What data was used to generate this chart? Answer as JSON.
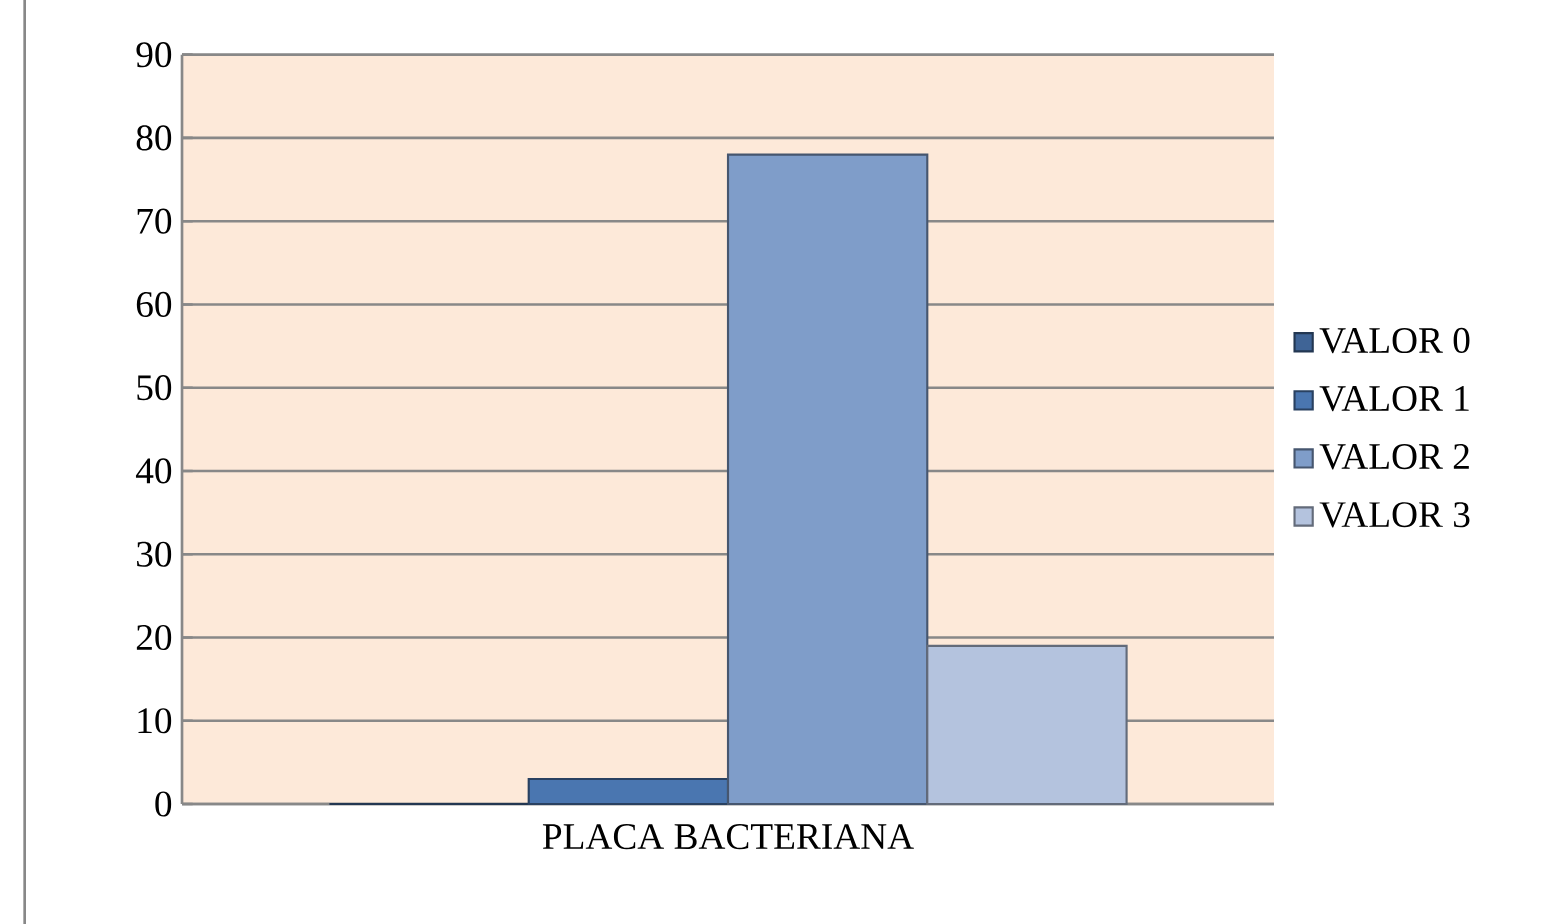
{
  "chart_data": {
    "type": "bar",
    "categories": [
      "PLACA BACTERIANA"
    ],
    "series": [
      {
        "name": "VALOR 0",
        "color": "#3f6496",
        "values": [
          0
        ]
      },
      {
        "name": "VALOR 1",
        "color": "#4a76b0",
        "values": [
          3
        ]
      },
      {
        "name": "VALOR 2",
        "color": "#7f9dc9",
        "values": [
          78
        ]
      },
      {
        "name": "VALOR 3",
        "color": "#b4c3de",
        "values": [
          19
        ]
      }
    ],
    "ylim": [
      0,
      90
    ],
    "yticks": [
      0,
      10,
      20,
      30,
      40,
      50,
      60,
      70,
      80,
      90
    ],
    "grid": "y",
    "legend": "right"
  }
}
